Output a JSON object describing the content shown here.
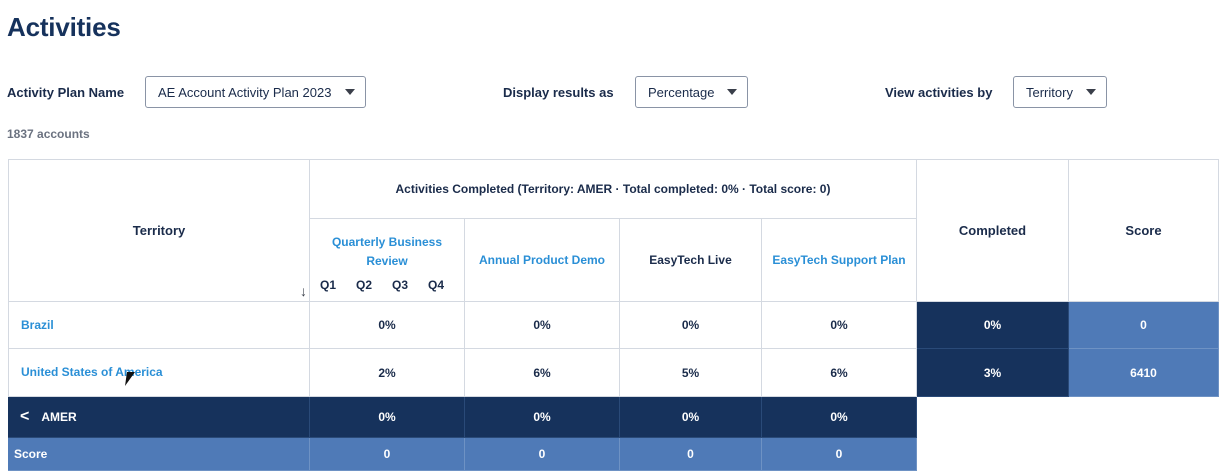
{
  "page": {
    "title": "Activities"
  },
  "filters": {
    "plan_label": "Activity Plan Name",
    "plan_value": "AE Account Activity Plan 2023",
    "display_label": "Display results as",
    "display_value": "Percentage",
    "view_label": "View activities by",
    "view_value": "Territory"
  },
  "accounts_count": "1837 accounts",
  "table": {
    "col_territory": "Territory",
    "group_header": "Activities Completed (Territory: AMER · Total completed: 0% · Total score: 0)",
    "activities": [
      {
        "label": "Quarterly Business Review"
      },
      {
        "label": "Annual Product Demo"
      },
      {
        "label": "EasyTech Live"
      },
      {
        "label": "EasyTech Support Plan"
      }
    ],
    "quarters": [
      "Q1",
      "Q2",
      "Q3",
      "Q4"
    ],
    "col_completed": "Completed",
    "col_score": "Score",
    "rows": [
      {
        "name": "Brazil",
        "values": [
          "0%",
          "0%",
          "0%",
          "0%"
        ],
        "completed": "0%",
        "score": "0"
      },
      {
        "name": "United States of America",
        "values": [
          "2%",
          "6%",
          "5%",
          "6%"
        ],
        "completed": "3%",
        "score": "6410"
      }
    ],
    "summary": {
      "name": "AMER",
      "values": [
        "0%",
        "0%",
        "0%",
        "0%"
      ]
    },
    "score_row": {
      "name": "Score",
      "values": [
        "0",
        "0",
        "0",
        "0"
      ]
    }
  },
  "colors": {
    "dark": "#16325c",
    "mid": "#4f7ab7",
    "link": "#2a8fd6"
  }
}
